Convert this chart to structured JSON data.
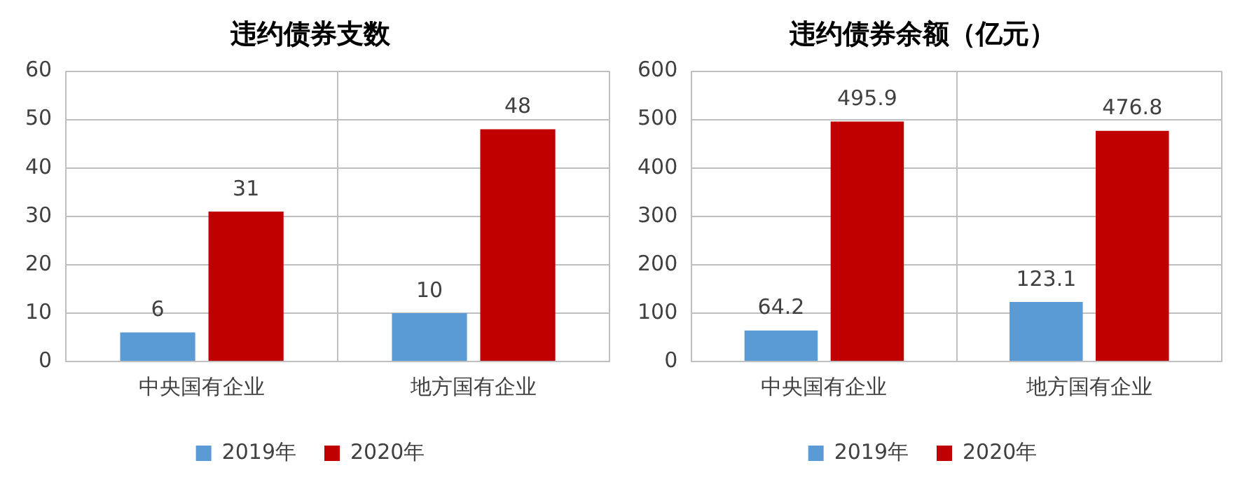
{
  "chart_data": [
    {
      "type": "bar",
      "title": "违约债券支数",
      "categories": [
        "中央国有企业",
        "地方国有企业"
      ],
      "series": [
        {
          "name": "2019年",
          "color": "#5b9bd5",
          "values": [
            6,
            10
          ]
        },
        {
          "name": "2020年",
          "color": "#c00000",
          "values": [
            31,
            48
          ]
        }
      ],
      "ylim": [
        0,
        60
      ],
      "yticks": [
        0,
        10,
        20,
        30,
        40,
        50,
        60
      ],
      "grid": true,
      "legend": "bottom",
      "data_labels": true
    },
    {
      "type": "bar",
      "title": "违约债券余额（亿元）",
      "categories": [
        "中央国有企业",
        "地方国有企业"
      ],
      "series": [
        {
          "name": "2019年",
          "color": "#5b9bd5",
          "values": [
            64.2,
            123.1
          ]
        },
        {
          "name": "2020年",
          "color": "#c00000",
          "values": [
            495.9,
            476.8
          ]
        }
      ],
      "ylim": [
        0,
        600
      ],
      "yticks": [
        0,
        100,
        200,
        300,
        400,
        500,
        600
      ],
      "grid": true,
      "legend": "bottom",
      "data_labels": true
    }
  ]
}
